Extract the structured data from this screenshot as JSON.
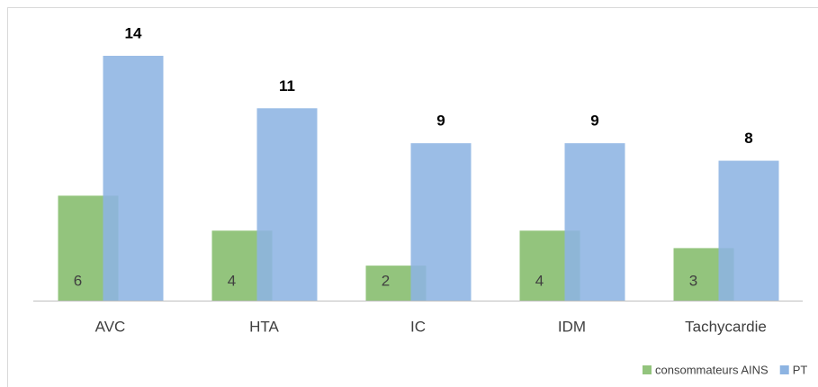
{
  "chart_data": {
    "type": "bar",
    "categories": [
      "AVC",
      "HTA",
      "IC",
      "IDM",
      "Tachycardie"
    ],
    "series": [
      {
        "name": "consommateurs AINS",
        "color": "#93c47d",
        "values": [
          6,
          4,
          2,
          4,
          3
        ]
      },
      {
        "name": "PT",
        "color": "#8db4e2",
        "values": [
          14,
          11,
          9,
          9,
          8
        ]
      }
    ],
    "ylim": [
      0,
      14
    ],
    "legend": "bottom-right"
  }
}
